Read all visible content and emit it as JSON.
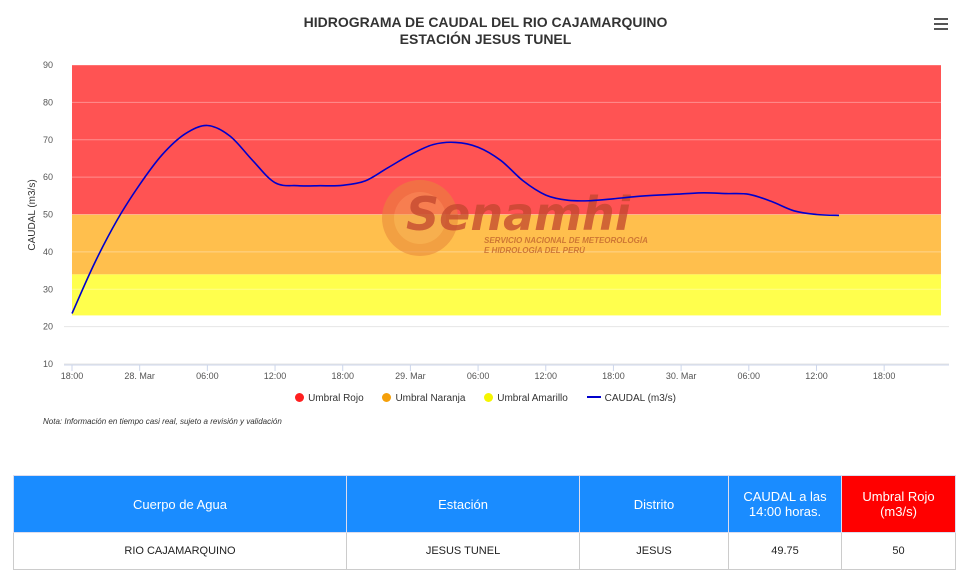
{
  "chart": {
    "title_line1": "HIDROGRAMA DE CAUDAL DEL RIO CAJAMARQUINO",
    "title_line2": "ESTACIÓN JESUS TUNEL",
    "menu_icon": "hamburger-menu-icon",
    "note": "Nota: Información en tiempo casi real, sujeto a revisión y validación",
    "watermark_name": "Senamhi",
    "watermark_line1": "SERVICIO NACIONAL DE METEOROLOGÍA",
    "watermark_line2": "E HIDROLOGÍA DEL PERÚ"
  },
  "chart_data": {
    "type": "line",
    "ylabel": "CAUDAL (m3/s)",
    "ylim": [
      10,
      90
    ],
    "yticks": [
      10,
      20,
      30,
      40,
      50,
      60,
      70,
      80,
      90
    ],
    "x_range_hours": [
      0,
      72
    ],
    "xticks": [
      {
        "h": 0,
        "label": "18:00"
      },
      {
        "h": 6,
        "label": "28. Mar"
      },
      {
        "h": 12,
        "label": "06:00"
      },
      {
        "h": 18,
        "label": "12:00"
      },
      {
        "h": 24,
        "label": "18:00"
      },
      {
        "h": 30,
        "label": "29. Mar"
      },
      {
        "h": 36,
        "label": "06:00"
      },
      {
        "h": 42,
        "label": "12:00"
      },
      {
        "h": 48,
        "label": "18:00"
      },
      {
        "h": 54,
        "label": "30. Mar"
      },
      {
        "h": 60,
        "label": "06:00"
      },
      {
        "h": 66,
        "label": "12:00"
      },
      {
        "h": 72,
        "label": "18:00"
      }
    ],
    "bands": [
      {
        "name": "Umbral Amarillo",
        "from": 23,
        "to": 34,
        "color": "#ffff4d"
      },
      {
        "name": "Umbral Naranja",
        "from": 34,
        "to": 50,
        "color": "#ffbf4d"
      },
      {
        "name": "Umbral Rojo",
        "from": 50,
        "to": 90,
        "color": "#ff5353"
      }
    ],
    "series": [
      {
        "name": "CAUDAL (m3/s)",
        "color": "#0000cc",
        "x": [
          0,
          2,
          4,
          6,
          8,
          10,
          12,
          14,
          16,
          18,
          20,
          22,
          24,
          26,
          28,
          30,
          32,
          34,
          36,
          38,
          40,
          42,
          44,
          46,
          48,
          50,
          52,
          54,
          56,
          58,
          60,
          62,
          64,
          66,
          68
        ],
        "y": [
          23.5,
          37,
          48.5,
          58,
          66,
          71.5,
          73.8,
          71,
          64.5,
          58.5,
          57.7,
          57.7,
          57.8,
          59,
          62.5,
          66,
          68.7,
          69.3,
          68,
          64.5,
          59,
          55.2,
          53.8,
          53.7,
          54.2,
          54.8,
          55.2,
          55.5,
          55.8,
          55.6,
          55.4,
          53.5,
          51,
          50,
          49.75
        ]
      }
    ],
    "legend": [
      "Umbral Rojo",
      "Umbral Naranja",
      "Umbral Amarillo",
      "CAUDAL (m3/s)"
    ],
    "legend_colors": [
      "#ff2020",
      "#f5a00a",
      "#f5f500",
      "#0000cc"
    ],
    "legend_position": "bottom"
  },
  "table": {
    "headers": [
      "Cuerpo de Agua",
      "Estación",
      "Distrito",
      "CAUDAL a las 14:00 horas.",
      "Umbral Rojo (m3/s)"
    ],
    "row": [
      "RIO CAJAMARQUINO",
      "JESUS TUNEL",
      "JESUS",
      "49.75",
      "50"
    ],
    "header_color": "#1a8cff",
    "header_red_color": "#ff0000"
  }
}
